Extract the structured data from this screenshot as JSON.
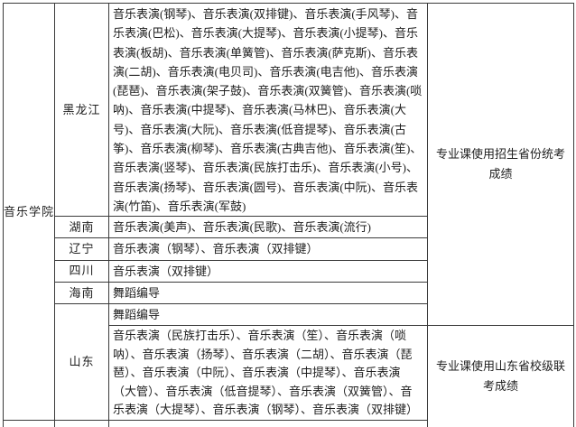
{
  "document": {
    "college": "音乐学院",
    "notes": {
      "unified": "专业课使用招生省份统考成绩",
      "shandong": "专业课使用山东省校级联考成绩"
    },
    "rows": [
      {
        "province": "黑龙江",
        "majors": "音乐表演(钢琴)、音乐表演(双排键)、音乐表演(手风琴)、音乐表演(巴松)、音乐表演(大提琴)、音乐表演(小提琴)、音乐表演(板胡)、音乐表演(单簧管)、音乐表演(萨克斯)、音乐表演(二胡)、音乐表演(电贝司)、音乐表演(电吉他)、音乐表演(琵琶)、音乐表演(架子鼓)、音乐表演(双簧管)、音乐表演(唢呐)、音乐表演(中提琴)、音乐表演(马林巴)、音乐表演(大号)、音乐表演(大阮)、音乐表演(低音提琴)、音乐表演(古筝)、音乐表演(柳琴)、音乐表演(古典吉他)、音乐表演(笙)、音乐表演(竖琴)、音乐表演(民族打击乐)、音乐表演(小号)、音乐表演(扬琴)、音乐表演(圆号)、音乐表演(中阮)、音乐表演(竹笛)、音乐表演(军鼓)"
      },
      {
        "province": "湖南",
        "majors": "音乐表演(美声)、音乐表演(民歌)、音乐表演(流行)"
      },
      {
        "province": "辽宁",
        "majors": "音乐表演（钢琴）、音乐表演（双排键）"
      },
      {
        "province": "四川",
        "majors": "音乐表演（双排键）"
      },
      {
        "province": "海南",
        "majors": "舞蹈编导"
      },
      {
        "province": "山东",
        "majors_dance": "舞蹈编导",
        "majors_music": "音乐表演（民族打击乐）、音乐表演（笙）、音乐表演（唢呐）、音乐表演（扬琴）、音乐表演（二胡）、音乐表演（琵琶）、音乐表演（中阮）、音乐表演（中提琴）、音乐表演（大管）、音乐表演（低音提琴）、音乐表演（双簧管）、音乐表演（大提琴）、音乐表演（钢琴）、音乐表演（双排键）"
      }
    ]
  },
  "colors": {
    "text": "#1f1f1f",
    "border": "#3a3a3a",
    "background": "#ffffff"
  }
}
